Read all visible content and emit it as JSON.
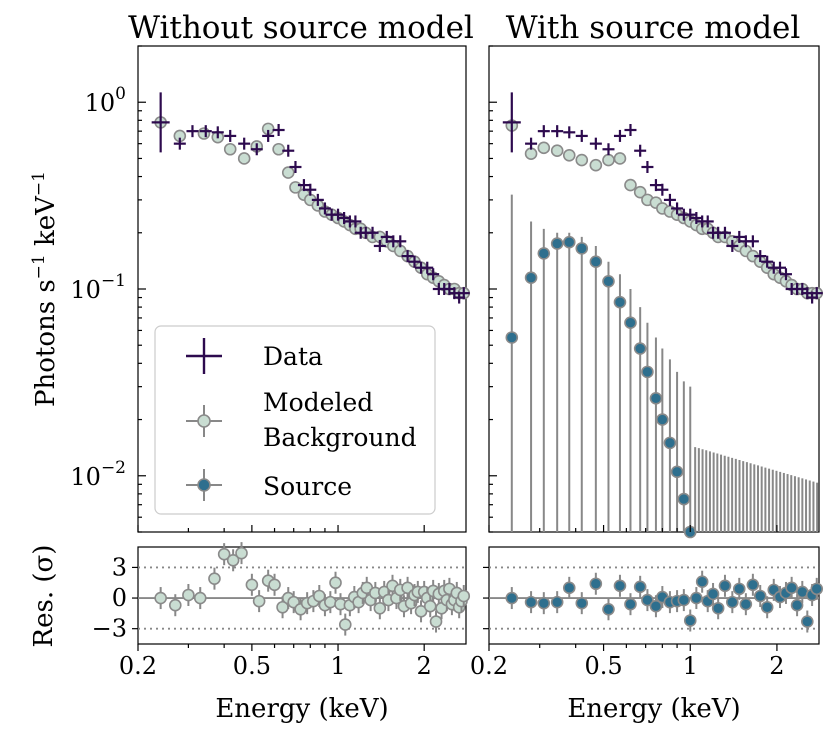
{
  "colors": {
    "data": "#2d0a4e",
    "background_fill": "#c9ddd2",
    "background_edge": "#8a8a8a",
    "source_fill": "#2e6f8e",
    "errorbar": "#888888",
    "zero_line": "#888888",
    "sigma_line": "#888888"
  },
  "legend": {
    "position": "lower-left",
    "data_label": "Data",
    "bkg_label_line1": "Modeled",
    "bkg_label_line2": "Background",
    "source_label": "Source"
  },
  "chart_data": [
    {
      "type": "scatter",
      "title": "Without source model",
      "ylabel": "Photons s$^{-1}$ keV$^{-1}$",
      "ylabel_main": "Photons s",
      "ylabel_exp1": "−1",
      "ylabel_mid": " keV",
      "ylabel_exp2": "−1",
      "xscale": "log",
      "yscale": "log",
      "xlim": [
        0.2,
        2.8
      ],
      "ylim": [
        0.005,
        2.0
      ],
      "ytick_base": "10",
      "yticks": [
        {
          "value": 1.0,
          "exp": "0"
        },
        {
          "value": 0.1,
          "exp": "−1"
        },
        {
          "value": 0.01,
          "exp": "−2"
        }
      ],
      "series": [
        {
          "name": "Data",
          "x": [
            0.24,
            0.28,
            0.31,
            0.345,
            0.38,
            0.42,
            0.47,
            0.52,
            0.57,
            0.62,
            0.67,
            0.71,
            0.76,
            0.8,
            0.85,
            0.9,
            0.95,
            1.0,
            1.05,
            1.1,
            1.15,
            1.2,
            1.25,
            1.32,
            1.4,
            1.48,
            1.56,
            1.65,
            1.75,
            1.85,
            1.95,
            2.05,
            2.15,
            2.25,
            2.35,
            2.45,
            2.55,
            2.65,
            2.75
          ],
          "y": [
            0.78,
            0.6,
            0.7,
            0.7,
            0.69,
            0.66,
            0.6,
            0.56,
            0.66,
            0.71,
            0.55,
            0.45,
            0.36,
            0.34,
            0.3,
            0.27,
            0.25,
            0.25,
            0.24,
            0.23,
            0.23,
            0.2,
            0.2,
            0.2,
            0.17,
            0.19,
            0.18,
            0.18,
            0.15,
            0.14,
            0.13,
            0.13,
            0.12,
            0.1,
            0.1,
            0.1,
            0.095,
            0.09,
            0.095
          ]
        },
        {
          "name": "Modeled Background",
          "x": [
            0.24,
            0.28,
            0.34,
            0.38,
            0.42,
            0.47,
            0.52,
            0.57,
            0.62,
            0.67,
            0.71,
            0.76,
            0.8,
            0.85,
            0.9,
            0.95,
            1.0,
            1.05,
            1.1,
            1.15,
            1.2,
            1.25,
            1.32,
            1.4,
            1.48,
            1.56,
            1.65,
            1.75,
            1.85,
            1.95,
            2.05,
            2.15,
            2.25,
            2.35,
            2.45,
            2.55,
            2.65,
            2.75
          ],
          "y": [
            0.78,
            0.66,
            0.68,
            0.65,
            0.56,
            0.5,
            0.58,
            0.72,
            0.56,
            0.42,
            0.35,
            0.32,
            0.3,
            0.28,
            0.26,
            0.25,
            0.24,
            0.23,
            0.22,
            0.21,
            0.21,
            0.2,
            0.19,
            0.19,
            0.18,
            0.17,
            0.16,
            0.15,
            0.14,
            0.13,
            0.12,
            0.115,
            0.11,
            0.105,
            0.1,
            0.1,
            0.095,
            0.095
          ]
        }
      ],
      "legend": true
    },
    {
      "type": "scatter",
      "title": "With source model",
      "xscale": "log",
      "yscale": "log",
      "xlim": [
        0.2,
        2.8
      ],
      "ylim": [
        0.005,
        2.0
      ],
      "series": [
        {
          "name": "Data",
          "x": [
            0.24,
            0.28,
            0.31,
            0.345,
            0.38,
            0.42,
            0.47,
            0.52,
            0.57,
            0.62,
            0.67,
            0.71,
            0.76,
            0.8,
            0.85,
            0.9,
            0.95,
            1.0,
            1.05,
            1.1,
            1.15,
            1.2,
            1.25,
            1.32,
            1.4,
            1.48,
            1.56,
            1.65,
            1.75,
            1.85,
            1.95,
            2.05,
            2.15,
            2.25,
            2.35,
            2.45,
            2.55,
            2.65,
            2.75
          ],
          "y": [
            0.78,
            0.6,
            0.7,
            0.7,
            0.69,
            0.66,
            0.6,
            0.56,
            0.66,
            0.71,
            0.55,
            0.45,
            0.36,
            0.34,
            0.3,
            0.27,
            0.25,
            0.25,
            0.24,
            0.23,
            0.23,
            0.2,
            0.2,
            0.2,
            0.17,
            0.19,
            0.18,
            0.18,
            0.15,
            0.14,
            0.13,
            0.13,
            0.12,
            0.1,
            0.1,
            0.1,
            0.095,
            0.09,
            0.095
          ]
        },
        {
          "name": "Modeled Background",
          "x": [
            0.24,
            0.28,
            0.31,
            0.345,
            0.38,
            0.42,
            0.47,
            0.52,
            0.57,
            0.62,
            0.67,
            0.71,
            0.76,
            0.8,
            0.85,
            0.9,
            0.95,
            1.0,
            1.05,
            1.1,
            1.15,
            1.2,
            1.25,
            1.32,
            1.4,
            1.48,
            1.56,
            1.65,
            1.75,
            1.85,
            1.95,
            2.05,
            2.15,
            2.25,
            2.35,
            2.45,
            2.55,
            2.65,
            2.75
          ],
          "y": [
            0.75,
            0.53,
            0.57,
            0.55,
            0.52,
            0.49,
            0.46,
            0.49,
            0.5,
            0.36,
            0.33,
            0.3,
            0.29,
            0.27,
            0.26,
            0.25,
            0.24,
            0.23,
            0.22,
            0.21,
            0.21,
            0.2,
            0.19,
            0.19,
            0.18,
            0.17,
            0.16,
            0.15,
            0.14,
            0.13,
            0.12,
            0.115,
            0.11,
            0.105,
            0.1,
            0.1,
            0.095,
            0.095,
            0.095
          ]
        },
        {
          "name": "Source",
          "x": [
            0.24,
            0.28,
            0.31,
            0.345,
            0.38,
            0.42,
            0.47,
            0.52,
            0.57,
            0.62,
            0.67,
            0.71,
            0.76,
            0.8,
            0.85,
            0.9,
            0.95,
            1.0
          ],
          "y": [
            0.055,
            0.115,
            0.155,
            0.175,
            0.178,
            0.165,
            0.14,
            0.11,
            0.085,
            0.066,
            0.048,
            0.036,
            0.026,
            0.02,
            0.015,
            0.0105,
            0.0075,
            0.005
          ],
          "yerr_low": [
            0.005,
            0.04,
            0.05,
            0.05,
            0.05,
            0.045,
            0.04,
            0.035,
            0.03,
            0.025,
            0.02,
            0.016,
            0.013,
            0.011,
            0.009,
            0.007,
            0.005,
            0.005
          ],
          "yerr_high": [
            0.32,
            0.23,
            0.21,
            0.2,
            0.2,
            0.19,
            0.17,
            0.14,
            0.12,
            0.1,
            0.08,
            0.066,
            0.055,
            0.048,
            0.042,
            0.036,
            0.032,
            0.03
          ]
        }
      ]
    }
  ],
  "residuals": {
    "ylabel": "Res. (σ)",
    "ylim": [
      -4.5,
      5.0
    ],
    "yticks": [
      {
        "value": 3,
        "label": "3"
      },
      {
        "value": 0,
        "label": "0"
      },
      {
        "value": -3,
        "label": "−3"
      }
    ],
    "xlabel": "Energy (keV)",
    "xticks": [
      {
        "value": 0.2,
        "label": "0.2"
      },
      {
        "value": 0.5,
        "label": "0.5"
      },
      {
        "value": 1,
        "label": "1"
      },
      {
        "value": 2,
        "label": "2"
      }
    ],
    "left": {
      "x": [
        0.24,
        0.27,
        0.3,
        0.33,
        0.37,
        0.4,
        0.43,
        0.46,
        0.5,
        0.53,
        0.57,
        0.6,
        0.64,
        0.67,
        0.7,
        0.74,
        0.78,
        0.82,
        0.86,
        0.9,
        0.94,
        0.98,
        1.02,
        1.06,
        1.1,
        1.14,
        1.18,
        1.22,
        1.26,
        1.3,
        1.35,
        1.4,
        1.45,
        1.5,
        1.55,
        1.6,
        1.65,
        1.7,
        1.75,
        1.8,
        1.85,
        1.9,
        1.95,
        2.0,
        2.05,
        2.1,
        2.15,
        2.2,
        2.25,
        2.3,
        2.35,
        2.4,
        2.45,
        2.5,
        2.55,
        2.6,
        2.65,
        2.7,
        2.75
      ],
      "y": [
        0.0,
        -0.7,
        0.3,
        0.0,
        1.9,
        4.3,
        3.7,
        4.4,
        1.3,
        -0.3,
        1.7,
        1.3,
        -0.9,
        0.0,
        -0.4,
        -1.1,
        -0.5,
        -0.3,
        0.2,
        -0.7,
        -0.4,
        1.5,
        -0.6,
        -2.6,
        -0.7,
        0.1,
        -0.4,
        0.5,
        1.0,
        -0.2,
        0.5,
        -1.0,
        0.6,
        -0.2,
        1.2,
        0.0,
        0.8,
        -0.8,
        1.0,
        -0.5,
        0.3,
        0.6,
        -1.3,
        0.6,
        0.0,
        -0.8,
        0.7,
        -2.3,
        0.4,
        -1.0,
        0.7,
        -0.2,
        0.9,
        -0.6,
        -0.2,
        0.5,
        -0.9,
        -0.3,
        0.2
      ]
    },
    "right": {
      "x": [
        0.24,
        0.28,
        0.31,
        0.345,
        0.38,
        0.42,
        0.47,
        0.52,
        0.57,
        0.62,
        0.67,
        0.71,
        0.76,
        0.8,
        0.85,
        0.9,
        0.95,
        1.0,
        1.05,
        1.1,
        1.15,
        1.2,
        1.25,
        1.32,
        1.4,
        1.48,
        1.56,
        1.65,
        1.75,
        1.85,
        1.95,
        2.05,
        2.15,
        2.25,
        2.35,
        2.45,
        2.55,
        2.65,
        2.75
      ],
      "y": [
        0.0,
        -0.4,
        -0.5,
        -0.4,
        1.0,
        -0.5,
        1.4,
        -1.1,
        1.2,
        -0.6,
        1.1,
        -0.2,
        -0.8,
        0.1,
        -0.4,
        -0.3,
        -0.2,
        -2.2,
        0.0,
        1.6,
        -0.3,
        0.4,
        -1.0,
        1.2,
        -0.4,
        0.9,
        -0.6,
        1.3,
        0.2,
        -0.9,
        0.8,
        0.1,
        0.5,
        1.0,
        -0.7,
        0.6,
        -2.3,
        0.3,
        0.9
      ]
    }
  }
}
